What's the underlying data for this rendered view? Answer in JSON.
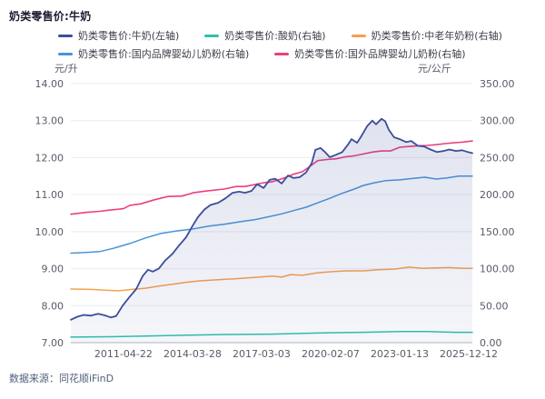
{
  "header": {
    "title": "奶类零售价:牛奶"
  },
  "source": {
    "label": "数据来源：",
    "value": "同花顺iFinD"
  },
  "colors": {
    "grid": "#ebebf1",
    "baseline": "#b2b5c1",
    "tick_text": "#5a5a68",
    "area_fill_top": "rgba(61,77,155,0.16)",
    "area_fill_bottom": "rgba(61,77,155,0.05)"
  },
  "chart_data": {
    "type": "line",
    "title": "奶类零售价:牛奶",
    "grid": true,
    "legend_position": "top",
    "legend_rows": [
      [
        0,
        1,
        2
      ],
      [
        3,
        4
      ]
    ],
    "draw_order": [
      1,
      2,
      3,
      4,
      0
    ],
    "left_axis": {
      "unit": "元/升",
      "min": 7,
      "max": 14,
      "ticks": [
        "14.00",
        "13.00",
        "12.00",
        "11.00",
        "10.00",
        "9.00",
        "8.00",
        "7.00"
      ]
    },
    "right_axis": {
      "unit": "元/公斤",
      "min": 0,
      "max": 350,
      "ticks": [
        "350.00",
        "300.00",
        "250.00",
        "200.00",
        "150.00",
        "100.00",
        "50.00",
        "0.00"
      ]
    },
    "x_axis": {
      "tick_labels": [
        "2011-04-22",
        "2014-03-28",
        "2017-03-03",
        "2020-02-07",
        "2023-01-13",
        "2025-12-12"
      ],
      "tick_positions": [
        0.131,
        0.303,
        0.475,
        0.647,
        0.819,
        0.991
      ]
    },
    "series": [
      {
        "name": "奶类零售价:牛奶(左轴)",
        "color": "#3c4d9b",
        "axis": "left",
        "area": true,
        "width": 1.8,
        "points": [
          [
            0,
            7.62
          ],
          [
            0.016,
            7.7
          ],
          [
            0.032,
            7.75
          ],
          [
            0.05,
            7.73
          ],
          [
            0.068,
            7.78
          ],
          [
            0.084,
            7.74
          ],
          [
            0.1,
            7.68
          ],
          [
            0.113,
            7.72
          ],
          [
            0.129,
            8.0
          ],
          [
            0.145,
            8.22
          ],
          [
            0.163,
            8.45
          ],
          [
            0.179,
            8.8
          ],
          [
            0.192,
            8.97
          ],
          [
            0.204,
            8.92
          ],
          [
            0.219,
            9.0
          ],
          [
            0.235,
            9.22
          ],
          [
            0.253,
            9.4
          ],
          [
            0.269,
            9.62
          ],
          [
            0.287,
            9.85
          ],
          [
            0.303,
            10.15
          ],
          [
            0.317,
            10.4
          ],
          [
            0.333,
            10.6
          ],
          [
            0.348,
            10.72
          ],
          [
            0.367,
            10.78
          ],
          [
            0.385,
            10.9
          ],
          [
            0.403,
            11.05
          ],
          [
            0.419,
            11.08
          ],
          [
            0.434,
            11.05
          ],
          [
            0.45,
            11.1
          ],
          [
            0.464,
            11.28
          ],
          [
            0.48,
            11.18
          ],
          [
            0.495,
            11.4
          ],
          [
            0.509,
            11.43
          ],
          [
            0.525,
            11.3
          ],
          [
            0.541,
            11.52
          ],
          [
            0.554,
            11.45
          ],
          [
            0.57,
            11.47
          ],
          [
            0.586,
            11.6
          ],
          [
            0.6,
            11.85
          ],
          [
            0.609,
            12.21
          ],
          [
            0.622,
            12.26
          ],
          [
            0.633,
            12.15
          ],
          [
            0.645,
            12.01
          ],
          [
            0.661,
            12.08
          ],
          [
            0.676,
            12.15
          ],
          [
            0.69,
            12.35
          ],
          [
            0.699,
            12.5
          ],
          [
            0.713,
            12.4
          ],
          [
            0.722,
            12.55
          ],
          [
            0.738,
            12.85
          ],
          [
            0.751,
            13.0
          ],
          [
            0.76,
            12.9
          ],
          [
            0.774,
            13.05
          ],
          [
            0.783,
            12.98
          ],
          [
            0.792,
            12.75
          ],
          [
            0.805,
            12.55
          ],
          [
            0.819,
            12.5
          ],
          [
            0.835,
            12.42
          ],
          [
            0.848,
            12.45
          ],
          [
            0.864,
            12.32
          ],
          [
            0.88,
            12.3
          ],
          [
            0.896,
            12.22
          ],
          [
            0.912,
            12.15
          ],
          [
            0.928,
            12.18
          ],
          [
            0.943,
            12.22
          ],
          [
            0.959,
            12.18
          ],
          [
            0.975,
            12.2
          ],
          [
            0.989,
            12.15
          ],
          [
            1,
            12.12
          ]
        ]
      },
      {
        "name": "奶类零售价:酸奶(右轴)",
        "color": "#2ec0ac",
        "axis": "right",
        "area": false,
        "width": 1.5,
        "points": [
          [
            0,
            7.5
          ],
          [
            0.095,
            8
          ],
          [
            0.186,
            9
          ],
          [
            0.276,
            10
          ],
          [
            0.389,
            11
          ],
          [
            0.502,
            11.5
          ],
          [
            0.615,
            13
          ],
          [
            0.729,
            14
          ],
          [
            0.819,
            15
          ],
          [
            0.887,
            15
          ],
          [
            0.955,
            14
          ],
          [
            1,
            14
          ]
        ]
      },
      {
        "name": "奶类零售价:中老年奶粉(右轴)",
        "color": "#f6a04d",
        "axis": "right",
        "area": false,
        "width": 1.5,
        "points": [
          [
            0,
            72.5
          ],
          [
            0.05,
            72
          ],
          [
            0.084,
            71
          ],
          [
            0.118,
            70
          ],
          [
            0.152,
            72
          ],
          [
            0.186,
            73.5
          ],
          [
            0.219,
            76.5
          ],
          [
            0.253,
            79
          ],
          [
            0.287,
            81.5
          ],
          [
            0.321,
            83.5
          ],
          [
            0.367,
            85
          ],
          [
            0.412,
            86.5
          ],
          [
            0.457,
            88
          ],
          [
            0.502,
            90
          ],
          [
            0.525,
            88.5
          ],
          [
            0.548,
            92
          ],
          [
            0.577,
            91
          ],
          [
            0.615,
            94.5
          ],
          [
            0.654,
            96
          ],
          [
            0.69,
            97
          ],
          [
            0.729,
            97
          ],
          [
            0.767,
            98.5
          ],
          [
            0.808,
            99.5
          ],
          [
            0.842,
            102
          ],
          [
            0.876,
            100.5
          ],
          [
            0.91,
            101
          ],
          [
            0.943,
            101.5
          ],
          [
            0.977,
            100.5
          ],
          [
            1,
            100.5
          ]
        ]
      },
      {
        "name": "奶类零售价:国内品牌婴幼儿奶粉(右轴)",
        "color": "#4795d8",
        "axis": "right",
        "area": false,
        "width": 1.5,
        "points": [
          [
            0,
            121
          ],
          [
            0.038,
            122
          ],
          [
            0.072,
            123
          ],
          [
            0.106,
            127.5
          ],
          [
            0.147,
            134
          ],
          [
            0.186,
            141.5
          ],
          [
            0.224,
            147.5
          ],
          [
            0.265,
            151
          ],
          [
            0.303,
            153.5
          ],
          [
            0.344,
            157.5
          ],
          [
            0.382,
            160
          ],
          [
            0.423,
            163.5
          ],
          [
            0.457,
            166
          ],
          [
            0.491,
            170
          ],
          [
            0.525,
            174
          ],
          [
            0.559,
            179
          ],
          [
            0.586,
            183
          ],
          [
            0.62,
            190
          ],
          [
            0.645,
            195
          ],
          [
            0.672,
            201
          ],
          [
            0.706,
            207.5
          ],
          [
            0.729,
            212.5
          ],
          [
            0.756,
            216
          ],
          [
            0.785,
            219
          ],
          [
            0.819,
            220
          ],
          [
            0.853,
            222
          ],
          [
            0.882,
            223.5
          ],
          [
            0.91,
            221
          ],
          [
            0.937,
            222.5
          ],
          [
            0.966,
            225
          ],
          [
            1,
            225
          ]
        ]
      },
      {
        "name": "奶类零售价:国外品牌婴幼儿奶粉(右轴)",
        "color": "#ec3f7f",
        "axis": "right",
        "area": false,
        "width": 1.6,
        "points": [
          [
            0,
            173.5
          ],
          [
            0.038,
            176
          ],
          [
            0.072,
            177.5
          ],
          [
            0.095,
            179
          ],
          [
            0.131,
            181
          ],
          [
            0.147,
            185.5
          ],
          [
            0.174,
            187.5
          ],
          [
            0.208,
            193
          ],
          [
            0.242,
            197.5
          ],
          [
            0.276,
            198
          ],
          [
            0.305,
            202.5
          ],
          [
            0.339,
            205
          ],
          [
            0.382,
            207.5
          ],
          [
            0.412,
            211
          ],
          [
            0.434,
            211
          ],
          [
            0.457,
            213.5
          ],
          [
            0.48,
            216
          ],
          [
            0.502,
            217.5
          ],
          [
            0.532,
            222.5
          ],
          [
            0.554,
            227.5
          ],
          [
            0.577,
            231
          ],
          [
            0.6,
            240
          ],
          [
            0.615,
            246
          ],
          [
            0.638,
            247.5
          ],
          [
            0.661,
            248.5
          ],
          [
            0.683,
            251
          ],
          [
            0.706,
            252.5
          ],
          [
            0.729,
            255
          ],
          [
            0.751,
            257.5
          ],
          [
            0.774,
            259
          ],
          [
            0.796,
            259
          ],
          [
            0.819,
            264
          ],
          [
            0.842,
            265
          ],
          [
            0.864,
            266
          ],
          [
            0.887,
            266.5
          ],
          [
            0.91,
            267.5
          ],
          [
            0.932,
            269
          ],
          [
            0.955,
            270
          ],
          [
            0.977,
            271
          ],
          [
            1,
            272.5
          ]
        ]
      }
    ]
  }
}
